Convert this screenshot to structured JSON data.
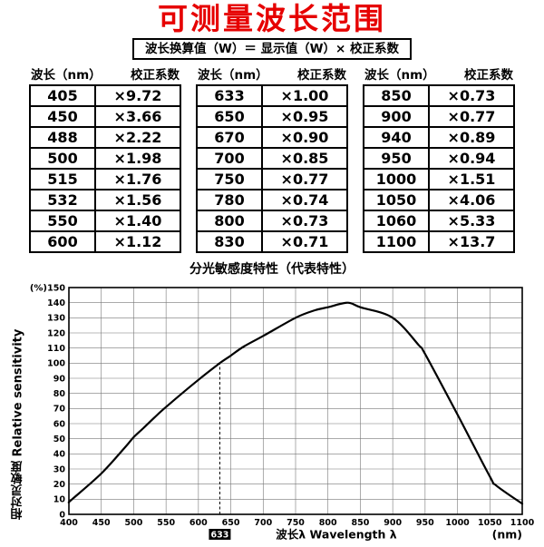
{
  "title": "可测量波长范围",
  "formula": "波长换算值（W）＝ 显示值（W）× 校正系数",
  "colors": {
    "title_red": "#e60000",
    "grid": "#777777",
    "curve": "#000000"
  },
  "tables": {
    "col_headers": [
      "波长（nm）",
      "校正系数"
    ],
    "groups": [
      {
        "rows": [
          [
            "405",
            "×9.72"
          ],
          [
            "450",
            "×3.66"
          ],
          [
            "488",
            "×2.22"
          ],
          [
            "500",
            "×1.98"
          ],
          [
            "515",
            "×1.76"
          ],
          [
            "532",
            "×1.56"
          ],
          [
            "550",
            "×1.40"
          ],
          [
            "600",
            "×1.12"
          ]
        ]
      },
      {
        "rows": [
          [
            "633",
            "×1.00"
          ],
          [
            "650",
            "×0.95"
          ],
          [
            "670",
            "×0.90"
          ],
          [
            "700",
            "×0.85"
          ],
          [
            "750",
            "×0.77"
          ],
          [
            "780",
            "×0.74"
          ],
          [
            "800",
            "×0.73"
          ],
          [
            "830",
            "×0.71"
          ]
        ]
      },
      {
        "rows": [
          [
            "850",
            "×0.73"
          ],
          [
            "900",
            "×0.77"
          ],
          [
            "940",
            "×0.89"
          ],
          [
            "950",
            "×0.94"
          ],
          [
            "1000",
            "×1.51"
          ],
          [
            "1050",
            "×4.06"
          ],
          [
            "1060",
            "×5.33"
          ],
          [
            "1100",
            "×13.7"
          ]
        ]
      }
    ]
  },
  "chart_data": {
    "type": "line",
    "title": "分光敏感度特性（代表特性）",
    "ylabel": "相对灵敏度 Relative sensitivity",
    "xlabel": "波长λ  Wavelength λ",
    "x_unit": "(nm)",
    "y_unit": "(%)",
    "xlim": [
      400,
      1100
    ],
    "ylim": [
      0,
      150
    ],
    "x_tick_step": 50,
    "y_tick_step": 10,
    "grid": true,
    "marker_x": 633,
    "marker_label": "633",
    "x": [
      400,
      405,
      450,
      488,
      500,
      515,
      532,
      550,
      600,
      633,
      650,
      670,
      700,
      750,
      780,
      800,
      830,
      850,
      900,
      940,
      950,
      1000,
      1050,
      1060,
      1100
    ],
    "y": [
      8,
      10,
      27,
      45,
      51,
      57,
      64,
      71,
      89,
      100,
      105,
      111,
      118,
      130,
      135,
      137,
      140,
      137,
      130,
      112,
      106,
      66,
      25,
      19,
      7
    ]
  }
}
